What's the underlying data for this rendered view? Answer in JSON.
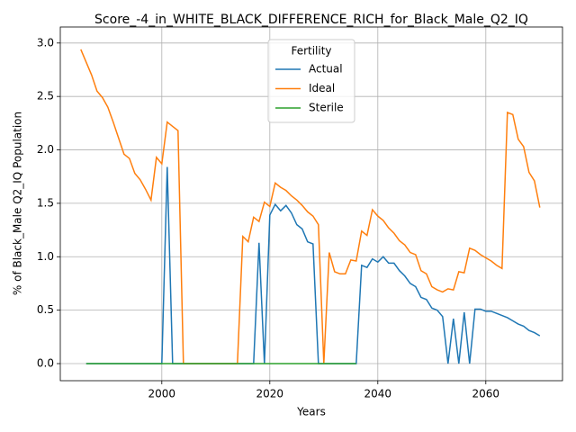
{
  "chart_data": {
    "type": "line",
    "title": "Score_-4_in_WHITE_BLACK_DIFFERENCE_RICH_for_Black_Male_Q2_IQ",
    "xlabel": "Years",
    "ylabel": "% of Black_Male Q2_IQ Population",
    "legend_title": "Fertility",
    "legend": "upper center",
    "grid": true,
    "xlim": [
      1981.2,
      2074.2
    ],
    "ylim": [
      -0.16,
      3.15
    ],
    "xticks": [
      2000,
      2020,
      2040,
      2060
    ],
    "yticks": [
      {
        "value": 0,
        "label": "0.0"
      },
      {
        "value": 0.5,
        "label": "0.5"
      },
      {
        "value": 1,
        "label": "1.0"
      },
      {
        "value": 1.5,
        "label": "1.5"
      },
      {
        "value": 2,
        "label": "2.0"
      },
      {
        "value": 2.5,
        "label": "2.5"
      },
      {
        "value": 3,
        "label": "3.0"
      }
    ],
    "x": [
      1985,
      1986,
      1987,
      1988,
      1989,
      1990,
      1991,
      1992,
      1993,
      1994,
      1995,
      1996,
      1997,
      1998,
      1999,
      2000,
      2001,
      2002,
      2003,
      2004,
      2005,
      2006,
      2007,
      2008,
      2009,
      2010,
      2011,
      2012,
      2013,
      2014,
      2015,
      2016,
      2017,
      2018,
      2019,
      2020,
      2021,
      2022,
      2023,
      2024,
      2025,
      2026,
      2027,
      2028,
      2029,
      2030,
      2031,
      2032,
      2033,
      2034,
      2035,
      2036,
      2037,
      2038,
      2039,
      2040,
      2041,
      2042,
      2043,
      2044,
      2045,
      2046,
      2047,
      2048,
      2049,
      2050,
      2051,
      2052,
      2053,
      2054,
      2055,
      2056,
      2057,
      2058,
      2059,
      2060,
      2061,
      2062,
      2063,
      2064,
      2065,
      2066,
      2067,
      2068,
      2069,
      2070
    ],
    "series": [
      {
        "name": "Actual",
        "color": "#1f77b4",
        "values": [
          null,
          0,
          0,
          0,
          0,
          0,
          0,
          0,
          0,
          0,
          0,
          0,
          0,
          0,
          0,
          0,
          1.84,
          0,
          0,
          0,
          0,
          0,
          0,
          0,
          0,
          0,
          0,
          0,
          0,
          0,
          0,
          0,
          0,
          1.13,
          0,
          1.39,
          1.49,
          1.43,
          1.48,
          1.41,
          1.3,
          1.26,
          1.14,
          1.12,
          0,
          0,
          0,
          0,
          0,
          0,
          0,
          0,
          0.92,
          0.9,
          0.98,
          0.95,
          1.0,
          0.94,
          0.94,
          0.87,
          0.82,
          0.75,
          0.72,
          0.62,
          0.6,
          0.52,
          0.5,
          0.44,
          0,
          0.42,
          0,
          0.48,
          0,
          0.51,
          0.51,
          0.49,
          0.49,
          0.47,
          0.45,
          0.43,
          0.4,
          0.37,
          0.35,
          0.31,
          0.29,
          0.26
        ]
      },
      {
        "name": "Ideal",
        "color": "#ff7f0e",
        "values": [
          2.94,
          2.82,
          2.7,
          2.55,
          2.49,
          2.4,
          2.26,
          2.11,
          1.96,
          1.92,
          1.78,
          1.72,
          1.63,
          1.53,
          1.93,
          1.87,
          2.26,
          2.22,
          2.18,
          0,
          0,
          0,
          0,
          0,
          0,
          0,
          0,
          0,
          0,
          0,
          1.19,
          1.14,
          1.37,
          1.33,
          1.51,
          1.47,
          1.69,
          1.65,
          1.62,
          1.57,
          1.53,
          1.48,
          1.42,
          1.38,
          1.3,
          0,
          1.04,
          0.86,
          0.84,
          0.84,
          0.97,
          0.96,
          1.24,
          1.2,
          1.44,
          1.38,
          1.34,
          1.27,
          1.22,
          1.15,
          1.11,
          1.04,
          1.02,
          0.87,
          0.84,
          0.72,
          0.69,
          0.67,
          0.7,
          0.69,
          0.86,
          0.85,
          1.08,
          1.06,
          1.02,
          0.99,
          0.96,
          0.92,
          0.89,
          2.35,
          2.33,
          2.1,
          2.03,
          1.79,
          1.71,
          1.46
        ]
      },
      {
        "name": "Sterile",
        "color": "#2ca02c",
        "values": [
          null,
          0,
          0,
          0,
          0,
          0,
          0,
          0,
          0,
          0,
          0,
          0,
          0,
          0,
          0,
          0,
          0,
          0,
          0,
          0,
          0,
          0,
          0,
          0,
          0,
          0,
          0,
          0,
          0,
          0,
          0,
          0,
          0,
          0,
          0,
          0,
          0,
          0,
          0,
          0,
          0,
          0,
          0,
          0,
          0,
          0,
          0,
          0,
          0,
          0,
          0,
          0,
          null,
          null,
          null,
          null,
          null,
          null,
          null,
          null,
          null,
          null,
          null,
          null,
          null,
          null,
          null,
          null,
          null,
          null,
          null,
          null,
          null,
          null,
          null,
          null,
          null,
          null,
          null,
          null,
          null,
          null,
          null,
          null,
          null,
          null
        ]
      }
    ]
  }
}
